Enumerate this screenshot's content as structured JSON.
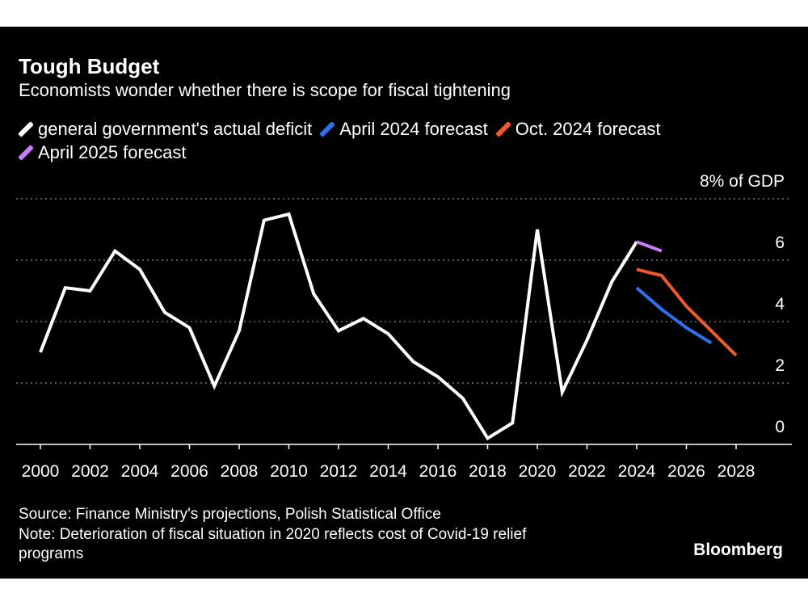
{
  "header": {
    "title": "Tough Budget",
    "subtitle": "Economists wonder whether there is scope for fiscal tightening"
  },
  "footer": {
    "source": "Source: Finance Ministry's projections, Polish Statistical Office",
    "note": "Note: Deterioration of fiscal situation in 2020 reflects cost of Covid-19 relief programs",
    "brand": "Bloomberg"
  },
  "chart_data": {
    "type": "line",
    "unit_label": "8% of GDP",
    "x_ticks": [
      "2000",
      "2002",
      "2004",
      "2006",
      "2008",
      "2010",
      "2012",
      "2014",
      "2016",
      "2018",
      "2020",
      "2022",
      "2024",
      "2026",
      "2028"
    ],
    "y_ticks": [
      "0",
      "2",
      "4",
      "6"
    ],
    "ylim": [
      0,
      8
    ],
    "xlim": [
      1999.1,
      2030.8
    ],
    "grid": "horizontal dotted",
    "legend_position": "top",
    "series": [
      {
        "name": "general government's actual deficit",
        "color": "#ffffff",
        "x": [
          2000,
          2001,
          2002,
          2003,
          2004,
          2005,
          2006,
          2007,
          2008,
          2009,
          2010,
          2011,
          2012,
          2013,
          2014,
          2015,
          2016,
          2017,
          2018,
          2019,
          2020,
          2021,
          2022,
          2023,
          2024
        ],
        "y": [
          3.0,
          5.1,
          5.0,
          6.3,
          5.7,
          4.3,
          3.8,
          1.9,
          3.7,
          7.3,
          7.5,
          4.9,
          3.7,
          4.1,
          3.6,
          2.7,
          2.2,
          1.5,
          0.2,
          0.7,
          7.0,
          1.7,
          3.4,
          5.3,
          6.6
        ]
      },
      {
        "name": "April 2024 forecast",
        "color": "#2e6fec",
        "x": [
          2024,
          2025,
          2026,
          2027
        ],
        "y": [
          5.1,
          4.4,
          3.8,
          3.3
        ]
      },
      {
        "name": "Oct. 2024 forecast",
        "color": "#ee5a2c",
        "x": [
          2024,
          2025,
          2026,
          2027,
          2028
        ],
        "y": [
          5.7,
          5.5,
          4.5,
          3.7,
          2.9
        ]
      },
      {
        "name": "April 2025 forecast",
        "color": "#c77df4",
        "x": [
          2024,
          2025
        ],
        "y": [
          6.6,
          6.3
        ]
      }
    ]
  }
}
